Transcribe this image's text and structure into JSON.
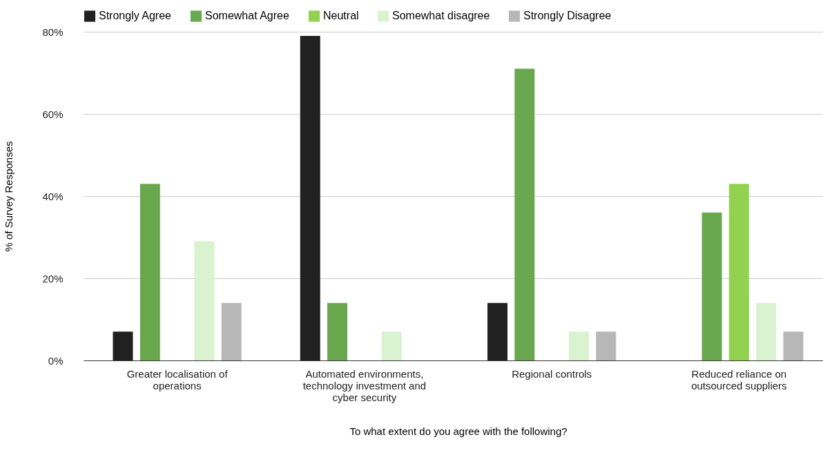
{
  "chart_data": {
    "type": "bar",
    "xlabel": "To what extent do you agree with the following?",
    "ylabel": "% of Survey Responses",
    "categories": [
      "Greater localisation of operations",
      "Automated environments, technology investment and cyber security",
      "Regional controls",
      "Reduced reliance on outsourced suppliers"
    ],
    "series": [
      {
        "name": "Strongly Agree",
        "color": "#212121",
        "values": [
          7,
          79,
          14,
          0
        ]
      },
      {
        "name": "Somewhat Agree",
        "color": "#6aa84f",
        "values": [
          43,
          14,
          71,
          36
        ]
      },
      {
        "name": "Neutral",
        "color": "#93d150",
        "values": [
          0,
          0,
          0,
          43
        ]
      },
      {
        "name": "Somewhat disagree",
        "color": "#d9f2d0",
        "values": [
          29,
          7,
          7,
          14
        ]
      },
      {
        "name": "Strongly Disagree",
        "color": "#b7b7b7",
        "values": [
          14,
          0,
          7,
          7
        ]
      }
    ],
    "ylim": [
      0,
      80
    ],
    "yticks": [
      {
        "value": 0,
        "label": "0%"
      },
      {
        "value": 20,
        "label": "20%"
      },
      {
        "value": 40,
        "label": "40%"
      },
      {
        "value": 60,
        "label": "60%"
      },
      {
        "value": 80,
        "label": "80%"
      }
    ],
    "grid": "y",
    "legend": "top"
  }
}
